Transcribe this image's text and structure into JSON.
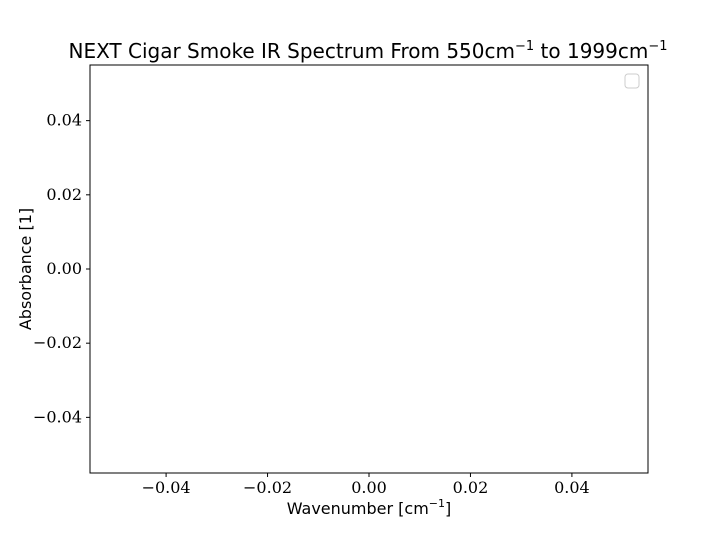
{
  "chart_data": {
    "type": "line",
    "title": {
      "main": "NEXT Cigar Smoke IR Spectrum From 550cm",
      "sup1": "−1",
      "mid": " to 1999cm",
      "sup2": "−1"
    },
    "xlabel": {
      "main": "Wavenumber [cm",
      "sup": "−1",
      "end": "]"
    },
    "ylabel": "Absorbance [1]",
    "xlim": [
      -0.055,
      0.055
    ],
    "ylim": [
      -0.055,
      0.055
    ],
    "xticks": [
      -0.04,
      -0.02,
      0.0,
      0.02,
      0.04
    ],
    "xtick_labels": [
      "−0.04",
      "−0.02",
      "0.00",
      "0.02",
      "0.04"
    ],
    "yticks": [
      0.04,
      0.02,
      0.0,
      -0.02,
      -0.04
    ],
    "ytick_labels": [
      "0.04",
      "0.02",
      "0.00",
      "−0.02",
      "−0.04"
    ],
    "series": [],
    "grid": false,
    "legend": {
      "placement": "top-right",
      "entries": []
    }
  }
}
